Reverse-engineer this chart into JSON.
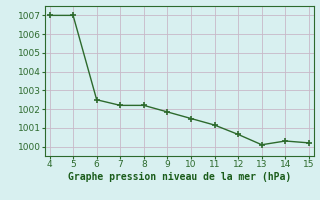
{
  "x": [
    4,
    5,
    6,
    7,
    8,
    9,
    10,
    11,
    12,
    13,
    14,
    15
  ],
  "y": [
    1007.0,
    1007.0,
    1002.5,
    1002.2,
    1002.2,
    1001.85,
    1001.5,
    1001.15,
    1000.65,
    1000.1,
    1000.3,
    1000.2
  ],
  "xlim": [
    3.8,
    15.2
  ],
  "ylim": [
    999.5,
    1007.5
  ],
  "yticks": [
    1000,
    1001,
    1002,
    1003,
    1004,
    1005,
    1006,
    1007
  ],
  "xticks": [
    4,
    5,
    6,
    7,
    8,
    9,
    10,
    11,
    12,
    13,
    14,
    15
  ],
  "line_color": "#2d6a2d",
  "marker_color": "#2d6a2d",
  "bg_color": "#d8f0f0",
  "grid_color": "#c8b8c8",
  "xlabel": "Graphe pression niveau de la mer (hPa)",
  "xlabel_color": "#1a5c1a",
  "tick_color": "#2d6a2d",
  "marker": "+",
  "marker_size": 4,
  "line_width": 1.0
}
